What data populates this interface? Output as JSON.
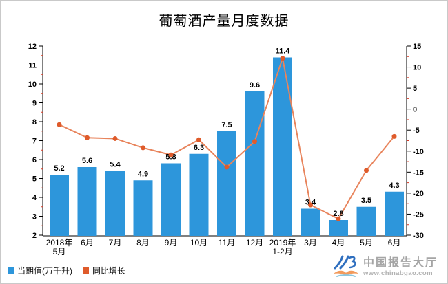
{
  "title": "葡萄酒产量月度数据",
  "watermark": {
    "name": "中国报告大厅",
    "url": "www.chinabgao.com"
  },
  "legend": {
    "items": [
      {
        "label": "当期值(万千升)"
      },
      {
        "label": "同比增长"
      }
    ]
  },
  "chart_data": {
    "type": "bar",
    "subtype": "bar+line dual-axis combo",
    "title": "葡萄酒产量月度数据",
    "categories": [
      "2018年\n5月",
      "6月",
      "7月",
      "8月",
      "9月",
      "10月",
      "11月",
      "12月",
      "2019年\n1-2月",
      "3月",
      "4月",
      "5月",
      "6月"
    ],
    "series": [
      {
        "name": "当期值(万千升)",
        "type": "bar",
        "axis": "left",
        "color": "#2D96DB",
        "values": [
          5.2,
          5.6,
          5.4,
          4.9,
          5.8,
          6.3,
          7.5,
          9.6,
          11.4,
          3.4,
          2.8,
          3.5,
          4.3
        ]
      },
      {
        "name": "同比增长",
        "type": "line",
        "axis": "right",
        "color": "#E8845C",
        "marker_color": "#DF5B2B",
        "unit": "%",
        "values": [
          -3.7,
          -6.8,
          -7.0,
          -9.2,
          -10.9,
          -7.3,
          -13.8,
          -7.7,
          12.1,
          -22.8,
          -26.1,
          -14.6,
          -6.5
        ]
      }
    ],
    "left_axis": {
      "min": 2,
      "max": 12,
      "major_step": 1,
      "minor_step": 0.5,
      "ticks": [
        2,
        3,
        4,
        5,
        6,
        7,
        8,
        9,
        10,
        11,
        12
      ]
    },
    "right_axis": {
      "min": -30,
      "max": 15,
      "major_step": 5,
      "minor_step": 2.5,
      "ticks": [
        -30,
        -25,
        -20,
        -15,
        -10,
        -5,
        0,
        5,
        10,
        15
      ]
    },
    "grid": false,
    "legend_position": "bottom-left",
    "colors": {
      "axis": "#000000",
      "minor_tick": "#D93A26",
      "bar": "#2D96DB",
      "line": "#E8845C",
      "marker": "#DF5B2B"
    }
  }
}
